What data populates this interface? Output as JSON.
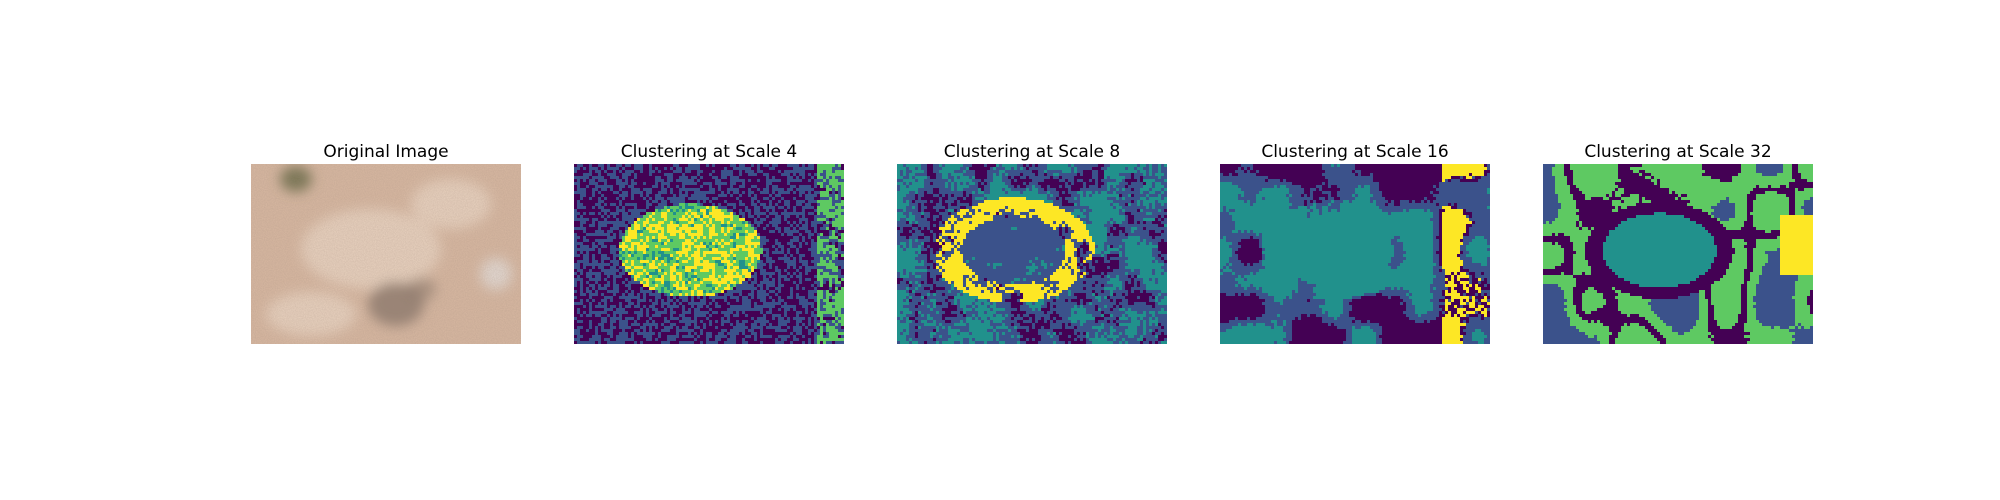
{
  "panels": [
    {
      "title": "Original Image",
      "kind": "photo"
    },
    {
      "title": "Clustering at Scale 4",
      "kind": "cluster",
      "scale": 4
    },
    {
      "title": "Clustering at Scale 8",
      "kind": "cluster",
      "scale": 8
    },
    {
      "title": "Clustering at Scale 16",
      "kind": "cluster",
      "scale": 16
    },
    {
      "title": "Clustering at Scale 32",
      "kind": "cluster",
      "scale": 32
    }
  ],
  "colors": {
    "cluster_palette": [
      "#440154",
      "#3b528b",
      "#21918c",
      "#5ec962",
      "#fde725"
    ],
    "photo_base": "#d9b9a2",
    "photo_light": "#ecd6c3",
    "photo_dark": "#8d7a6c",
    "photo_moss": "#6f6e4a"
  }
}
